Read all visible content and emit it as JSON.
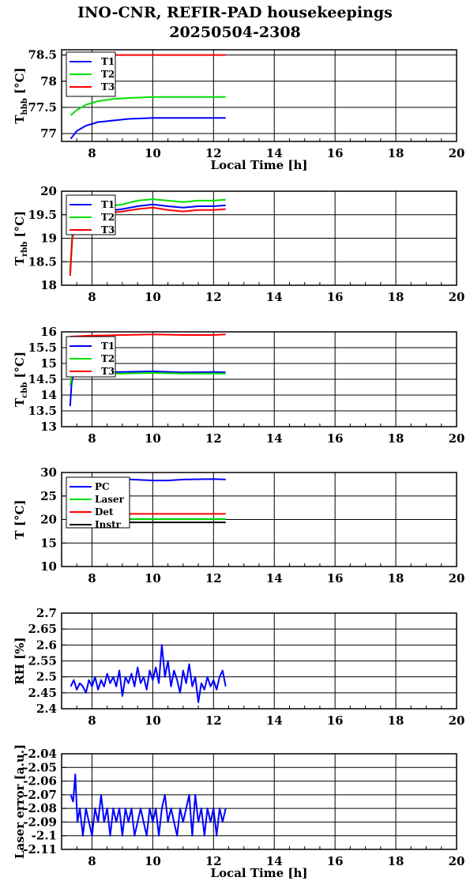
{
  "title_line1": "INO-CNR, REFIR-PAD housekeepings",
  "title_line2": "20250504-2308",
  "chart_data": [
    {
      "type": "line",
      "ylabel": "T",
      "ylabel_sub": "hbb",
      "ylabel_unit": " [°C]",
      "xlabel": "Local Time [h]",
      "xlim": [
        7,
        20
      ],
      "ylim": [
        76.85,
        78.6
      ],
      "xticks": [
        8,
        10,
        12,
        14,
        16,
        18,
        20
      ],
      "yticks": [
        77,
        77.5,
        78,
        78.5
      ],
      "ytick_labels": [
        "77",
        "77.5",
        "78",
        "78.5"
      ],
      "grid": true,
      "legend_position": "top-left",
      "series": [
        {
          "name": "T1",
          "color": "#0000ff",
          "points": [
            [
              7.3,
              76.9
            ],
            [
              7.5,
              77.05
            ],
            [
              7.8,
              77.15
            ],
            [
              8.2,
              77.22
            ],
            [
              8.7,
              77.25
            ],
            [
              9.2,
              77.28
            ],
            [
              10,
              77.3
            ],
            [
              11,
              77.3
            ],
            [
              12,
              77.3
            ],
            [
              12.4,
              77.3
            ]
          ]
        },
        {
          "name": "T2",
          "color": "#00e000",
          "points": [
            [
              7.3,
              77.35
            ],
            [
              7.5,
              77.45
            ],
            [
              7.8,
              77.55
            ],
            [
              8.2,
              77.62
            ],
            [
              8.7,
              77.66
            ],
            [
              9.2,
              77.68
            ],
            [
              10,
              77.7
            ],
            [
              11,
              77.7
            ],
            [
              12,
              77.7
            ],
            [
              12.4,
              77.7
            ]
          ]
        },
        {
          "name": "T3",
          "color": "#ff0000",
          "points": [
            [
              7.3,
              78.5
            ],
            [
              8,
              78.5
            ],
            [
              9,
              78.5
            ],
            [
              10,
              78.5
            ],
            [
              11,
              78.5
            ],
            [
              12,
              78.5
            ],
            [
              12.4,
              78.5
            ]
          ]
        }
      ]
    },
    {
      "type": "line",
      "ylabel": "T",
      "ylabel_sub": "rbb",
      "ylabel_unit": " [°C]",
      "xlabel": "",
      "xlim": [
        7,
        20
      ],
      "ylim": [
        18,
        20
      ],
      "xticks": [
        8,
        10,
        12,
        14,
        16,
        18,
        20
      ],
      "yticks": [
        18,
        18.5,
        19,
        19.5,
        20
      ],
      "ytick_labels": [
        "18",
        "18.5",
        "19",
        "19.5",
        "20"
      ],
      "grid": true,
      "legend_position": "top-left",
      "series": [
        {
          "name": "T1",
          "color": "#0000ff",
          "points": [
            [
              7.28,
              18.25
            ],
            [
              7.35,
              19.05
            ],
            [
              7.5,
              19.4
            ],
            [
              8,
              19.52
            ],
            [
              8.5,
              19.58
            ],
            [
              9,
              19.62
            ],
            [
              9.5,
              19.68
            ],
            [
              10,
              19.72
            ],
            [
              10.5,
              19.68
            ],
            [
              11,
              19.65
            ],
            [
              11.5,
              19.68
            ],
            [
              12,
              19.68
            ],
            [
              12.4,
              19.7
            ]
          ]
        },
        {
          "name": "T2",
          "color": "#00e000",
          "points": [
            [
              7.28,
              18.3
            ],
            [
              7.35,
              19.1
            ],
            [
              7.5,
              19.5
            ],
            [
              8,
              19.6
            ],
            [
              8.5,
              19.68
            ],
            [
              9,
              19.72
            ],
            [
              9.5,
              19.8
            ],
            [
              10,
              19.83
            ],
            [
              10.5,
              19.8
            ],
            [
              11,
              19.77
            ],
            [
              11.5,
              19.8
            ],
            [
              12,
              19.8
            ],
            [
              12.4,
              19.82
            ]
          ]
        },
        {
          "name": "T3",
          "color": "#ff0000",
          "points": [
            [
              7.28,
              18.2
            ],
            [
              7.35,
              19.0
            ],
            [
              7.5,
              19.35
            ],
            [
              8,
              19.48
            ],
            [
              8.5,
              19.53
            ],
            [
              9,
              19.57
            ],
            [
              9.5,
              19.62
            ],
            [
              10,
              19.65
            ],
            [
              10.5,
              19.6
            ],
            [
              11,
              19.57
            ],
            [
              11.5,
              19.6
            ],
            [
              12,
              19.6
            ],
            [
              12.4,
              19.62
            ]
          ]
        }
      ]
    },
    {
      "type": "line",
      "ylabel": "T",
      "ylabel_sub": "cbb",
      "ylabel_unit": " [°C]",
      "xlabel": "",
      "xlim": [
        7,
        20
      ],
      "ylim": [
        13,
        16
      ],
      "xticks": [
        8,
        10,
        12,
        14,
        16,
        18,
        20
      ],
      "yticks": [
        13,
        13.5,
        14,
        14.5,
        15,
        15.5,
        16
      ],
      "ytick_labels": [
        "13",
        "13.5",
        "14",
        "14.5",
        "15",
        "15.5",
        "16"
      ],
      "grid": true,
      "legend_position": "top-left",
      "series": [
        {
          "name": "T1",
          "color": "#0000ff",
          "points": [
            [
              7.28,
              13.65
            ],
            [
              7.33,
              14.4
            ],
            [
              7.4,
              14.7
            ],
            [
              8,
              14.72
            ],
            [
              9,
              14.73
            ],
            [
              10,
              14.75
            ],
            [
              11,
              14.72
            ],
            [
              12,
              14.73
            ],
            [
              12.4,
              14.72
            ]
          ]
        },
        {
          "name": "T2",
          "color": "#00e000",
          "points": [
            [
              7.28,
              14.3
            ],
            [
              7.33,
              14.55
            ],
            [
              7.4,
              14.68
            ],
            [
              8,
              14.68
            ],
            [
              9,
              14.68
            ],
            [
              10,
              14.7
            ],
            [
              11,
              14.68
            ],
            [
              12,
              14.68
            ],
            [
              12.4,
              14.68
            ]
          ]
        },
        {
          "name": "T3",
          "color": "#ff0000",
          "points": [
            [
              7.28,
              15.85
            ],
            [
              8,
              15.88
            ],
            [
              9,
              15.9
            ],
            [
              10,
              15.92
            ],
            [
              11,
              15.9
            ],
            [
              12,
              15.9
            ],
            [
              12.4,
              15.92
            ]
          ]
        }
      ]
    },
    {
      "type": "line",
      "ylabel": "T [°C]",
      "ylabel_sub": "",
      "ylabel_unit": "",
      "xlabel": "",
      "xlim": [
        7,
        20
      ],
      "ylim": [
        10,
        30
      ],
      "xticks": [
        8,
        10,
        12,
        14,
        16,
        18,
        20
      ],
      "yticks": [
        10,
        15,
        20,
        25,
        30
      ],
      "ytick_labels": [
        "10",
        "15",
        "20",
        "25",
        "30"
      ],
      "grid": true,
      "legend_position": "top-left",
      "series": [
        {
          "name": "PC",
          "color": "#0000ff",
          "points": [
            [
              7.3,
              28.7
            ],
            [
              8,
              28.7
            ],
            [
              9,
              28.6
            ],
            [
              10,
              28.3
            ],
            [
              10.5,
              28.3
            ],
            [
              11,
              28.5
            ],
            [
              12,
              28.6
            ],
            [
              12.4,
              28.5
            ]
          ]
        },
        {
          "name": "Laser",
          "color": "#00e000",
          "points": [
            [
              7.3,
              20.1
            ],
            [
              12.4,
              20.1
            ]
          ]
        },
        {
          "name": "Det",
          "color": "#ff0000",
          "points": [
            [
              7.3,
              21.2
            ],
            [
              12.4,
              21.2
            ]
          ]
        },
        {
          "name": "Instr",
          "color": "#000000",
          "points": [
            [
              7.3,
              19.4
            ],
            [
              12.4,
              19.4
            ]
          ]
        }
      ]
    },
    {
      "type": "line",
      "ylabel": "RH [%]",
      "ylabel_sub": "",
      "ylabel_unit": "",
      "xlabel": "",
      "xlim": [
        7,
        20
      ],
      "ylim": [
        2.4,
        2.7
      ],
      "xticks": [
        8,
        10,
        12,
        14,
        16,
        18,
        20
      ],
      "yticks": [
        2.4,
        2.45,
        2.5,
        2.55,
        2.6,
        2.65,
        2.7
      ],
      "ytick_labels": [
        "2.4",
        "2.45",
        "2.5",
        "2.55",
        "2.6",
        "2.65",
        "2.7"
      ],
      "grid": true,
      "legend_position": "none",
      "series": [
        {
          "name": "",
          "color": "#0000ff",
          "points": [
            [
              7.3,
              2.47
            ],
            [
              7.4,
              2.49
            ],
            [
              7.5,
              2.46
            ],
            [
              7.6,
              2.48
            ],
            [
              7.7,
              2.47
            ],
            [
              7.8,
              2.45
            ],
            [
              7.9,
              2.49
            ],
            [
              8.0,
              2.47
            ],
            [
              8.1,
              2.5
            ],
            [
              8.2,
              2.46
            ],
            [
              8.3,
              2.49
            ],
            [
              8.4,
              2.47
            ],
            [
              8.5,
              2.51
            ],
            [
              8.6,
              2.48
            ],
            [
              8.7,
              2.5
            ],
            [
              8.8,
              2.47
            ],
            [
              8.9,
              2.52
            ],
            [
              9.0,
              2.44
            ],
            [
              9.1,
              2.5
            ],
            [
              9.2,
              2.48
            ],
            [
              9.3,
              2.51
            ],
            [
              9.4,
              2.47
            ],
            [
              9.5,
              2.53
            ],
            [
              9.6,
              2.48
            ],
            [
              9.7,
              2.5
            ],
            [
              9.8,
              2.46
            ],
            [
              9.9,
              2.52
            ],
            [
              10.0,
              2.49
            ],
            [
              10.1,
              2.53
            ],
            [
              10.2,
              2.48
            ],
            [
              10.3,
              2.6
            ],
            [
              10.4,
              2.5
            ],
            [
              10.5,
              2.55
            ],
            [
              10.6,
              2.47
            ],
            [
              10.7,
              2.52
            ],
            [
              10.8,
              2.49
            ],
            [
              10.9,
              2.45
            ],
            [
              11.0,
              2.52
            ],
            [
              11.1,
              2.48
            ],
            [
              11.2,
              2.54
            ],
            [
              11.3,
              2.47
            ],
            [
              11.4,
              2.5
            ],
            [
              11.5,
              2.42
            ],
            [
              11.6,
              2.48
            ],
            [
              11.7,
              2.46
            ],
            [
              11.8,
              2.5
            ],
            [
              11.9,
              2.47
            ],
            [
              12.0,
              2.49
            ],
            [
              12.1,
              2.46
            ],
            [
              12.2,
              2.5
            ],
            [
              12.3,
              2.52
            ],
            [
              12.4,
              2.47
            ]
          ]
        }
      ]
    },
    {
      "type": "line",
      "ylabel": "Laser error [a.u.]",
      "ylabel_sub": "",
      "ylabel_unit": "",
      "xlabel": "Local Time [h]",
      "xlim": [
        7,
        20
      ],
      "ylim": [
        -2.11,
        -2.04
      ],
      "xticks": [
        8,
        10,
        12,
        14,
        16,
        18,
        20
      ],
      "yticks": [
        -2.11,
        -2.1,
        -2.09,
        -2.08,
        -2.07,
        -2.06,
        -2.05,
        -2.04
      ],
      "ytick_labels": [
        "-2.11",
        "-2.1",
        "-2.09",
        "-2.08",
        "-2.07",
        "-2.06",
        "-2.05",
        "-2.04"
      ],
      "grid": true,
      "legend_position": "none",
      "series": [
        {
          "name": "",
          "color": "#0000ff",
          "points": [
            [
              7.3,
              -2.07
            ],
            [
              7.38,
              -2.075
            ],
            [
              7.45,
              -2.055
            ],
            [
              7.52,
              -2.09
            ],
            [
              7.6,
              -2.08
            ],
            [
              7.7,
              -2.1
            ],
            [
              7.8,
              -2.08
            ],
            [
              7.9,
              -2.09
            ],
            [
              8.0,
              -2.1
            ],
            [
              8.1,
              -2.08
            ],
            [
              8.2,
              -2.09
            ],
            [
              8.3,
              -2.07
            ],
            [
              8.4,
              -2.09
            ],
            [
              8.5,
              -2.08
            ],
            [
              8.6,
              -2.1
            ],
            [
              8.7,
              -2.08
            ],
            [
              8.8,
              -2.09
            ],
            [
              8.9,
              -2.08
            ],
            [
              9.0,
              -2.1
            ],
            [
              9.1,
              -2.08
            ],
            [
              9.2,
              -2.09
            ],
            [
              9.3,
              -2.08
            ],
            [
              9.4,
              -2.1
            ],
            [
              9.5,
              -2.09
            ],
            [
              9.6,
              -2.08
            ],
            [
              9.7,
              -2.09
            ],
            [
              9.8,
              -2.1
            ],
            [
              9.9,
              -2.08
            ],
            [
              10.0,
              -2.09
            ],
            [
              10.1,
              -2.08
            ],
            [
              10.2,
              -2.1
            ],
            [
              10.3,
              -2.08
            ],
            [
              10.4,
              -2.07
            ],
            [
              10.5,
              -2.09
            ],
            [
              10.6,
              -2.08
            ],
            [
              10.7,
              -2.09
            ],
            [
              10.8,
              -2.1
            ],
            [
              10.9,
              -2.08
            ],
            [
              11.0,
              -2.09
            ],
            [
              11.1,
              -2.08
            ],
            [
              11.2,
              -2.07
            ],
            [
              11.3,
              -2.1
            ],
            [
              11.4,
              -2.07
            ],
            [
              11.5,
              -2.09
            ],
            [
              11.6,
              -2.08
            ],
            [
              11.7,
              -2.1
            ],
            [
              11.8,
              -2.08
            ],
            [
              11.9,
              -2.09
            ],
            [
              12.0,
              -2.08
            ],
            [
              12.1,
              -2.1
            ],
            [
              12.2,
              -2.08
            ],
            [
              12.3,
              -2.09
            ],
            [
              12.4,
              -2.08
            ]
          ]
        }
      ]
    }
  ]
}
